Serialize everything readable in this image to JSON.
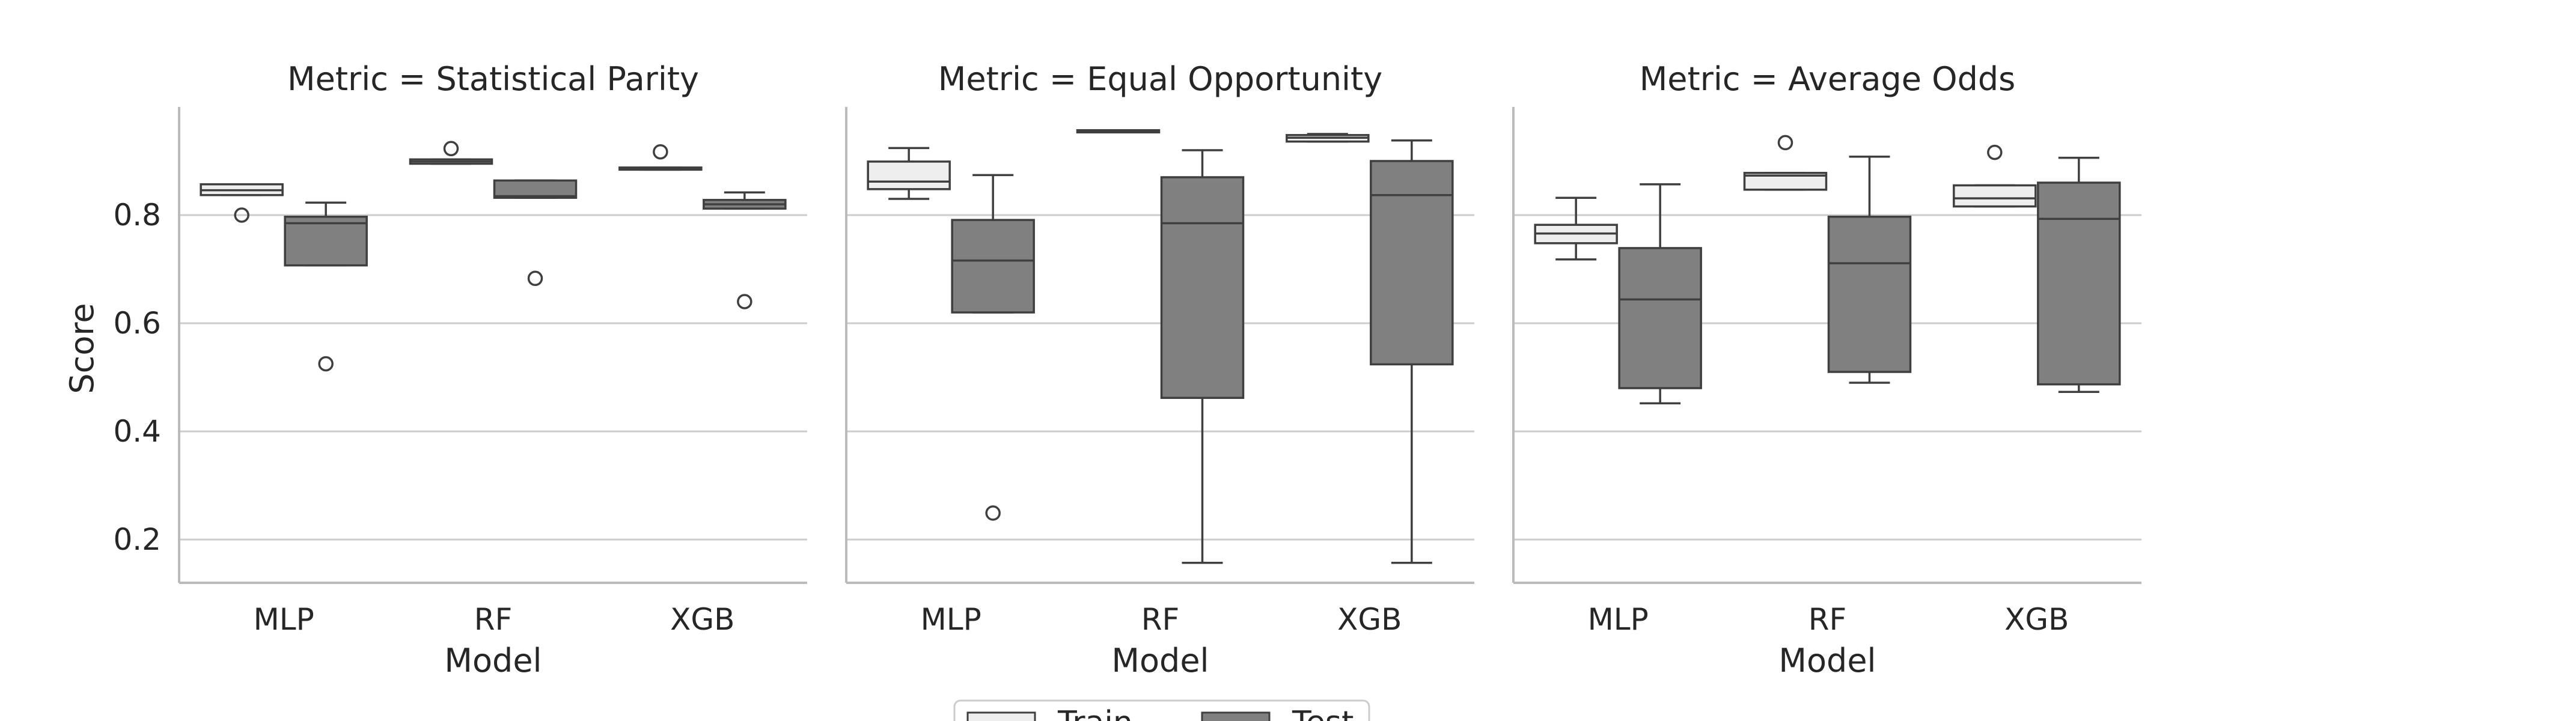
{
  "chart_data": {
    "type": "box",
    "ylabel": "Score",
    "xlabel": "Model",
    "categories": [
      "MLP",
      "RF",
      "XGB"
    ],
    "ylim": [
      0.12,
      1.0
    ],
    "yticks": [
      "0.2",
      "0.4",
      "0.6",
      "0.8"
    ],
    "grid": "horizontal",
    "legend": {
      "placement": "bottom-center",
      "entries": [
        {
          "name": "Train",
          "color": "#eeeeee"
        },
        {
          "name": "Test",
          "color": "#808080"
        }
      ]
    },
    "panels": [
      {
        "title": "Metric = Statistical Parity",
        "boxes": {
          "MLP": {
            "Train": {
              "min": 0.837,
              "q1": 0.837,
              "median": 0.846,
              "q3": 0.857,
              "max": 0.857,
              "outliers": [
                0.8
              ]
            },
            "Test": {
              "min": 0.707,
              "q1": 0.707,
              "median": 0.785,
              "q3": 0.797,
              "max": 0.823,
              "outliers": [
                0.525
              ]
            }
          },
          "RF": {
            "Train": {
              "min": 0.895,
              "q1": 0.895,
              "median": 0.899,
              "q3": 0.903,
              "max": 0.903,
              "outliers": [
                0.923
              ]
            },
            "Test": {
              "min": 0.832,
              "q1": 0.832,
              "median": 0.835,
              "q3": 0.864,
              "max": 0.864,
              "outliers": [
                0.683
              ]
            }
          },
          "XGB": {
            "Train": {
              "min": 0.884,
              "q1": 0.884,
              "median": 0.886,
              "q3": 0.888,
              "max": 0.888,
              "outliers": [
                0.917
              ]
            },
            "Test": {
              "min": 0.812,
              "q1": 0.812,
              "median": 0.82,
              "q3": 0.828,
              "max": 0.842,
              "outliers": [
                0.64
              ]
            }
          }
        }
      },
      {
        "title": "Metric = Equal Opportunity",
        "boxes": {
          "MLP": {
            "Train": {
              "min": 0.83,
              "q1": 0.848,
              "median": 0.862,
              "q3": 0.899,
              "max": 0.924,
              "outliers": []
            },
            "Test": {
              "min": 0.62,
              "q1": 0.62,
              "median": 0.716,
              "q3": 0.791,
              "max": 0.874,
              "outliers": [
                0.249
              ]
            }
          },
          "RF": {
            "Train": {
              "min": 0.953,
              "q1": 0.953,
              "median": 0.955,
              "q3": 0.957,
              "max": 0.957,
              "outliers": []
            },
            "Test": {
              "min": 0.157,
              "q1": 0.462,
              "median": 0.785,
              "q3": 0.87,
              "max": 0.92,
              "outliers": []
            }
          },
          "XGB": {
            "Train": {
              "min": 0.936,
              "q1": 0.936,
              "median": 0.943,
              "q3": 0.948,
              "max": 0.95,
              "outliers": []
            },
            "Test": {
              "min": 0.157,
              "q1": 0.524,
              "median": 0.837,
              "q3": 0.9,
              "max": 0.938,
              "outliers": []
            }
          }
        }
      },
      {
        "title": "Metric = Average Odds",
        "boxes": {
          "MLP": {
            "Train": {
              "min": 0.718,
              "q1": 0.748,
              "median": 0.766,
              "q3": 0.782,
              "max": 0.832,
              "outliers": []
            },
            "Test": {
              "min": 0.452,
              "q1": 0.48,
              "median": 0.644,
              "q3": 0.739,
              "max": 0.857,
              "outliers": []
            }
          },
          "RF": {
            "Train": {
              "min": 0.847,
              "q1": 0.847,
              "median": 0.873,
              "q3": 0.878,
              "max": 0.878,
              "outliers": [
                0.934
              ]
            },
            "Test": {
              "min": 0.49,
              "q1": 0.51,
              "median": 0.711,
              "q3": 0.797,
              "max": 0.908,
              "outliers": []
            }
          },
          "XGB": {
            "Train": {
              "min": 0.816,
              "q1": 0.816,
              "median": 0.831,
              "q3": 0.855,
              "max": 0.855,
              "outliers": [
                0.916
              ]
            },
            "Test": {
              "min": 0.473,
              "q1": 0.487,
              "median": 0.793,
              "q3": 0.86,
              "max": 0.906,
              "outliers": []
            }
          }
        }
      }
    ]
  }
}
